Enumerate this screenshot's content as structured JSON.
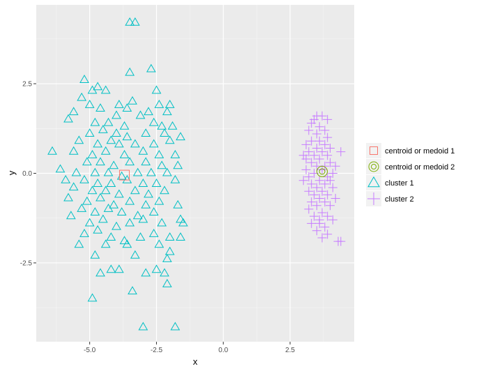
{
  "chart_data": {
    "type": "scatter",
    "title": "",
    "xlabel": "x",
    "ylabel": "y",
    "xlim": [
      -7.0,
      4.9
    ],
    "ylim": [
      -4.7,
      4.7
    ],
    "x_ticks": [
      -5.0,
      -2.5,
      0.0,
      2.5
    ],
    "x_tick_labels": [
      "-5.0",
      "-2.5",
      "0.0",
      "2.5"
    ],
    "y_ticks": [
      -2.5,
      0.0,
      2.5
    ],
    "y_tick_labels": [
      "-2.5",
      "0.0",
      "2.5"
    ],
    "grid": true,
    "legend_position": "right",
    "legend": [
      {
        "key": "centroid1",
        "label": "centroid or medoid 1",
        "shape": "square-icon",
        "color": "#F8766D"
      },
      {
        "key": "centroid2",
        "label": "centroid or medoid 2",
        "shape": "circle-icon",
        "color": "#7CAE00"
      },
      {
        "key": "cluster1",
        "label": "cluster 1",
        "shape": "triangle-icon",
        "color": "#00BFC4"
      },
      {
        "key": "cluster2",
        "label": "cluster 2",
        "shape": "plus-icon",
        "color": "#C77CFF"
      }
    ],
    "series": [
      {
        "name": "cluster 1",
        "shape": "triangle",
        "color": "#00BFC4",
        "points": [
          [
            -3.3,
            4.2
          ],
          [
            -3.5,
            4.2
          ],
          [
            -5.2,
            2.6
          ],
          [
            -3.5,
            2.8
          ],
          [
            -2.7,
            2.9
          ],
          [
            -4.7,
            2.4
          ],
          [
            -4.4,
            2.3
          ],
          [
            -4.9,
            2.3
          ],
          [
            -2.5,
            2.3
          ],
          [
            -5.3,
            2.1
          ],
          [
            -3.9,
            1.9
          ],
          [
            -3.4,
            2.0
          ],
          [
            -2.4,
            1.9
          ],
          [
            -2.0,
            1.9
          ],
          [
            -4.6,
            1.8
          ],
          [
            -5.0,
            1.9
          ],
          [
            -5.6,
            1.7
          ],
          [
            -3.6,
            1.8
          ],
          [
            -2.8,
            1.7
          ],
          [
            -2.1,
            1.7
          ],
          [
            -4.0,
            1.6
          ],
          [
            -3.1,
            1.6
          ],
          [
            -5.8,
            1.5
          ],
          [
            -4.8,
            1.4
          ],
          [
            -4.3,
            1.4
          ],
          [
            -3.7,
            1.3
          ],
          [
            -2.6,
            1.4
          ],
          [
            -2.3,
            1.3
          ],
          [
            -1.9,
            1.3
          ],
          [
            -5.0,
            1.1
          ],
          [
            -4.5,
            1.2
          ],
          [
            -4.0,
            1.1
          ],
          [
            -3.6,
            1.0
          ],
          [
            -2.9,
            1.1
          ],
          [
            -2.2,
            1.1
          ],
          [
            -1.6,
            1.0
          ],
          [
            -5.4,
            0.9
          ],
          [
            -4.7,
            0.8
          ],
          [
            -4.2,
            0.9
          ],
          [
            -3.9,
            0.8
          ],
          [
            -3.3,
            0.8
          ],
          [
            -2.6,
            0.8
          ],
          [
            -2.0,
            0.9
          ],
          [
            -6.4,
            0.6
          ],
          [
            -5.6,
            0.6
          ],
          [
            -4.9,
            0.5
          ],
          [
            -4.4,
            0.6
          ],
          [
            -3.7,
            0.5
          ],
          [
            -3.0,
            0.6
          ],
          [
            -2.4,
            0.5
          ],
          [
            -1.8,
            0.5
          ],
          [
            -5.1,
            0.3
          ],
          [
            -4.6,
            0.3
          ],
          [
            -4.1,
            0.2
          ],
          [
            -3.5,
            0.3
          ],
          [
            -2.9,
            0.3
          ],
          [
            -2.3,
            0.2
          ],
          [
            -1.7,
            0.2
          ],
          [
            -6.1,
            0.1
          ],
          [
            -5.5,
            0.0
          ],
          [
            -4.8,
            0.0
          ],
          [
            -4.3,
            0.0
          ],
          [
            -3.8,
            -0.1
          ],
          [
            -3.2,
            0.0
          ],
          [
            -2.7,
            0.0
          ],
          [
            -2.1,
            0.0
          ],
          [
            -5.9,
            -0.2
          ],
          [
            -5.2,
            -0.2
          ],
          [
            -4.7,
            -0.3
          ],
          [
            -4.2,
            -0.3
          ],
          [
            -3.6,
            -0.2
          ],
          [
            -3.0,
            -0.3
          ],
          [
            -2.5,
            -0.3
          ],
          [
            -1.8,
            -0.2
          ],
          [
            -5.6,
            -0.4
          ],
          [
            -4.9,
            -0.5
          ],
          [
            -4.4,
            -0.5
          ],
          [
            -3.9,
            -0.6
          ],
          [
            -3.3,
            -0.5
          ],
          [
            -2.8,
            -0.6
          ],
          [
            -2.2,
            -0.5
          ],
          [
            -5.8,
            -0.7
          ],
          [
            -5.1,
            -0.8
          ],
          [
            -4.6,
            -0.7
          ],
          [
            -4.1,
            -0.9
          ],
          [
            -3.5,
            -0.8
          ],
          [
            -2.9,
            -0.9
          ],
          [
            -2.4,
            -0.8
          ],
          [
            -5.3,
            -1.0
          ],
          [
            -4.8,
            -1.1
          ],
          [
            -4.3,
            -1.0
          ],
          [
            -3.8,
            -1.1
          ],
          [
            -3.2,
            -1.2
          ],
          [
            -2.6,
            -1.1
          ],
          [
            -1.7,
            -0.9
          ],
          [
            -5.7,
            -1.2
          ],
          [
            -5.0,
            -1.4
          ],
          [
            -4.5,
            -1.3
          ],
          [
            -4.0,
            -1.5
          ],
          [
            -3.5,
            -1.4
          ],
          [
            -3.0,
            -1.3
          ],
          [
            -2.3,
            -1.4
          ],
          [
            -1.6,
            -1.3
          ],
          [
            -5.2,
            -1.7
          ],
          [
            -4.7,
            -1.6
          ],
          [
            -4.2,
            -1.8
          ],
          [
            -3.7,
            -1.9
          ],
          [
            -3.1,
            -1.8
          ],
          [
            -2.6,
            -1.7
          ],
          [
            -2.0,
            -1.8
          ],
          [
            -1.6,
            -1.8
          ],
          [
            -5.4,
            -2.0
          ],
          [
            -4.4,
            -2.0
          ],
          [
            -3.6,
            -2.0
          ],
          [
            -2.4,
            -2.0
          ],
          [
            -4.8,
            -2.3
          ],
          [
            -3.3,
            -2.3
          ],
          [
            -2.0,
            -2.2
          ],
          [
            -2.1,
            -2.4
          ],
          [
            -4.6,
            -2.8
          ],
          [
            -4.2,
            -2.7
          ],
          [
            -3.9,
            -2.7
          ],
          [
            -2.9,
            -2.8
          ],
          [
            -2.5,
            -2.7
          ],
          [
            -2.2,
            -2.8
          ],
          [
            -2.1,
            -3.1
          ],
          [
            -3.4,
            -3.3
          ],
          [
            -4.9,
            -3.5
          ],
          [
            -3.0,
            -4.3
          ],
          [
            -1.8,
            -4.3
          ],
          [
            -1.5,
            -1.4
          ]
        ]
      },
      {
        "name": "cluster 2",
        "shape": "plus",
        "color": "#C77CFF",
        "points": [
          [
            3.5,
            1.6
          ],
          [
            3.7,
            1.6
          ],
          [
            3.9,
            1.5
          ],
          [
            3.6,
            1.3
          ],
          [
            3.3,
            1.4
          ],
          [
            3.8,
            1.2
          ],
          [
            3.2,
            1.2
          ],
          [
            3.5,
            1.1
          ],
          [
            3.9,
            1.0
          ],
          [
            3.6,
            0.9
          ],
          [
            3.3,
            0.9
          ],
          [
            3.1,
            0.8
          ],
          [
            3.8,
            0.8
          ],
          [
            4.0,
            0.7
          ],
          [
            3.5,
            0.7
          ],
          [
            3.2,
            0.6
          ],
          [
            3.7,
            0.6
          ],
          [
            3.9,
            0.5
          ],
          [
            3.4,
            0.5
          ],
          [
            3.1,
            0.4
          ],
          [
            3.6,
            0.4
          ],
          [
            4.0,
            0.3
          ],
          [
            3.3,
            0.3
          ],
          [
            3.8,
            0.2
          ],
          [
            3.5,
            0.2
          ],
          [
            3.1,
            0.1
          ],
          [
            3.7,
            0.1
          ],
          [
            4.1,
            0.0
          ],
          [
            3.4,
            0.0
          ],
          [
            3.9,
            -0.1
          ],
          [
            3.2,
            -0.1
          ],
          [
            3.6,
            -0.2
          ],
          [
            4.0,
            -0.2
          ],
          [
            3.3,
            -0.3
          ],
          [
            3.8,
            -0.3
          ],
          [
            3.5,
            -0.4
          ],
          [
            4.1,
            -0.4
          ],
          [
            3.2,
            -0.5
          ],
          [
            3.7,
            -0.5
          ],
          [
            3.9,
            -0.6
          ],
          [
            3.4,
            -0.6
          ],
          [
            3.6,
            -0.7
          ],
          [
            4.2,
            -0.7
          ],
          [
            3.3,
            -0.8
          ],
          [
            3.8,
            -0.8
          ],
          [
            3.5,
            -0.9
          ],
          [
            4.0,
            -0.9
          ],
          [
            3.2,
            -1.0
          ],
          [
            3.7,
            -1.1
          ],
          [
            3.9,
            -1.2
          ],
          [
            3.4,
            -1.2
          ],
          [
            3.6,
            -1.3
          ],
          [
            4.1,
            -1.3
          ],
          [
            3.3,
            -1.4
          ],
          [
            3.8,
            -1.5
          ],
          [
            3.5,
            -1.6
          ],
          [
            3.9,
            -1.7
          ],
          [
            3.7,
            -1.8
          ],
          [
            4.3,
            -1.9
          ],
          [
            4.4,
            -1.9
          ],
          [
            3.0,
            0.5
          ],
          [
            3.0,
            -0.2
          ],
          [
            4.2,
            0.2
          ],
          [
            4.4,
            0.6
          ],
          [
            3.4,
            1.5
          ],
          [
            3.6,
            -1.4
          ]
        ]
      }
    ],
    "centroids": [
      {
        "name": "centroid or medoid 1",
        "shape": "square",
        "color": "#F8766D",
        "x": -3.7,
        "y": -0.05
      },
      {
        "name": "centroid or medoid 2",
        "shape": "circle",
        "color": "#7CAE00",
        "x": 3.7,
        "y": 0.05
      }
    ]
  }
}
